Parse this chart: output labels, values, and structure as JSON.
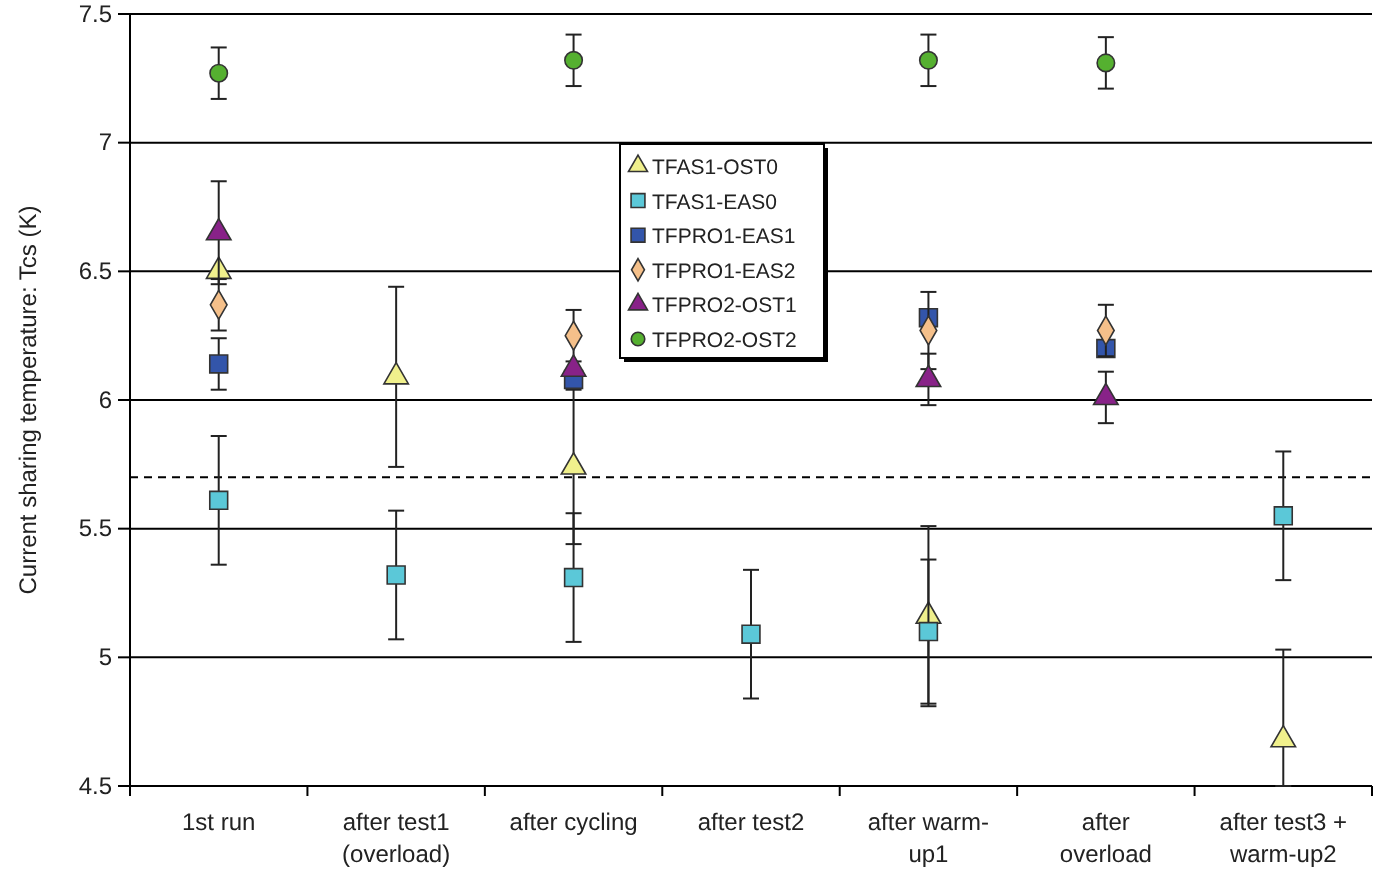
{
  "chart_data": {
    "type": "scatter",
    "ylabel": "Current sharing temperature: Tcs (K)",
    "categories": [
      "1st run",
      "after test1\n(overload)",
      "after cycling",
      "after test2",
      "after warm-\nup1",
      "after\noverload",
      "after test3 +\nwarm-up2"
    ],
    "ylim": [
      4.5,
      7.5
    ],
    "yticks": [
      4.5,
      5,
      5.5,
      6,
      6.5,
      7,
      7.5
    ],
    "grid": "y",
    "legend": "top",
    "line_style": "none",
    "ref_lines": [
      {
        "axis": "y",
        "value": 5.7,
        "line_style": "dashed",
        "color": "#000000"
      }
    ],
    "series": [
      {
        "name": "TFAS1-OST0",
        "color": "#f0f08c",
        "marker": "triangle",
        "values": [
          6.5,
          6.09,
          5.74,
          null,
          5.16,
          null,
          4.68
        ],
        "errors": [
          null,
          0.35,
          0.3,
          null,
          0.35,
          null,
          [
            4.5,
            5.03
          ]
        ]
      },
      {
        "name": "TFAS1-EAS0",
        "color": "#5bc8d8",
        "marker": "square",
        "values": [
          5.61,
          5.32,
          5.31,
          5.09,
          5.1,
          null,
          5.55
        ],
        "errors": [
          0.25,
          0.25,
          0.25,
          0.25,
          0.28,
          null,
          0.25
        ]
      },
      {
        "name": "TFPRO1-EAS1",
        "color": "#3355aa",
        "marker": "square",
        "values": [
          6.14,
          null,
          6.08,
          null,
          6.32,
          6.2,
          null
        ],
        "errors": [
          0.1,
          null,
          null,
          null,
          null,
          null,
          null
        ]
      },
      {
        "name": "TFPRO1-EAS2",
        "color": "#f5c08a",
        "marker": "diamond",
        "values": [
          6.37,
          null,
          6.25,
          null,
          6.27,
          6.27,
          null
        ],
        "errors": [
          0.1,
          null,
          0.1,
          null,
          0.15,
          0.1,
          null
        ]
      },
      {
        "name": "TFPRO2-OST1",
        "color": "#882288",
        "marker": "triangle",
        "values": [
          6.65,
          null,
          6.12,
          null,
          6.08,
          6.01,
          null
        ],
        "errors": [
          0.2,
          null,
          null,
          null,
          0.1,
          0.1,
          null
        ]
      },
      {
        "name": "TFPRO2-OST2",
        "color": "#55b030",
        "marker": "circle",
        "values": [
          7.27,
          null,
          7.32,
          null,
          7.32,
          7.31,
          null
        ],
        "errors": [
          0.1,
          null,
          0.1,
          null,
          0.1,
          0.1,
          null
        ]
      }
    ]
  }
}
